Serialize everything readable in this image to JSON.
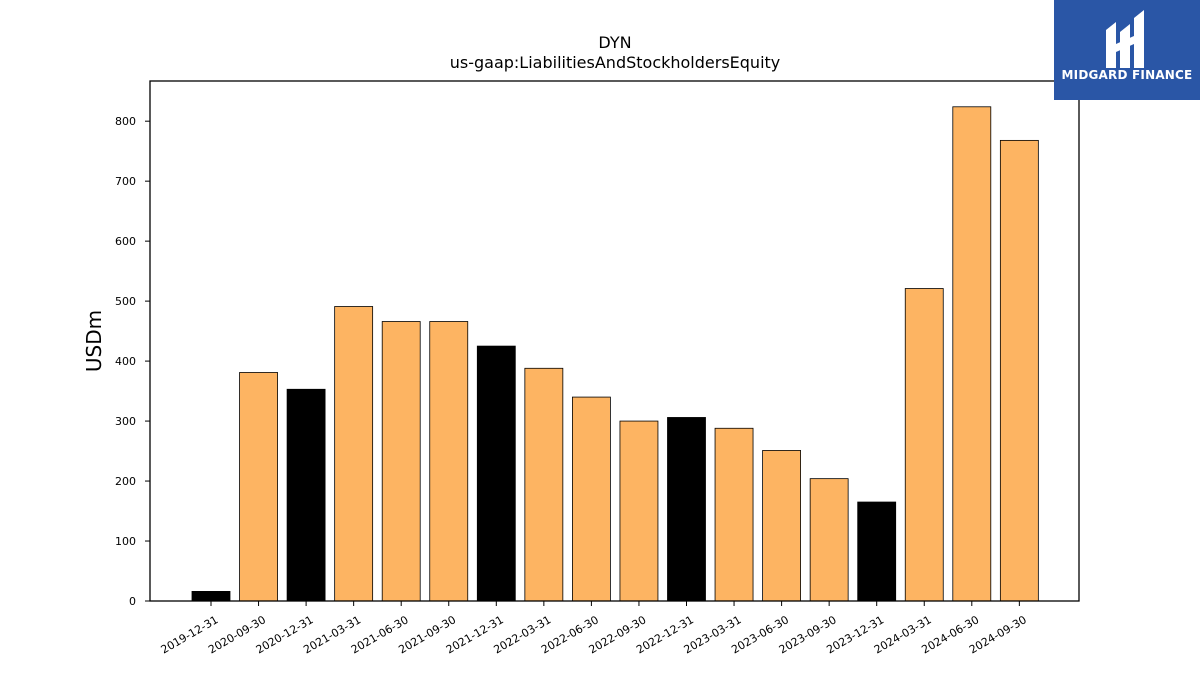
{
  "chart_data": {
    "type": "bar",
    "title": "DYN",
    "subtitle": "us-gaap:LiabilitiesAndStockholdersEquity",
    "xlabel": "",
    "ylabel": "USDm",
    "ylim": [
      0,
      867
    ],
    "yticks": [
      0,
      100,
      200,
      300,
      400,
      500,
      600,
      700,
      800
    ],
    "categories": [
      "2019-12-31",
      "2020-09-30",
      "2020-12-31",
      "2021-03-31",
      "2021-06-30",
      "2021-09-30",
      "2021-12-31",
      "2022-03-31",
      "2022-06-30",
      "2022-09-30",
      "2022-12-31",
      "2023-03-31",
      "2023-06-30",
      "2023-09-30",
      "2023-12-31",
      "2024-03-31",
      "2024-06-30",
      "2024-09-30"
    ],
    "values": [
      16,
      381,
      353,
      491,
      466,
      466,
      425,
      388,
      340,
      300,
      306,
      288,
      251,
      204,
      165,
      521,
      824,
      768
    ],
    "bar_colors": [
      "#000000",
      "#fdb462",
      "#000000",
      "#fdb462",
      "#fdb462",
      "#fdb462",
      "#000000",
      "#fdb462",
      "#fdb462",
      "#fdb462",
      "#000000",
      "#fdb462",
      "#fdb462",
      "#fdb462",
      "#000000",
      "#fdb462",
      "#fdb462",
      "#fdb462"
    ],
    "grid": false,
    "legend": "none"
  },
  "colors": {
    "quarterly_bar": "#fdb462",
    "annual_bar": "#000000",
    "logo_background": "#2a56a6"
  },
  "logo": {
    "text": "MIDGARD FINANCE",
    "icon": "midgard-logo-icon"
  }
}
